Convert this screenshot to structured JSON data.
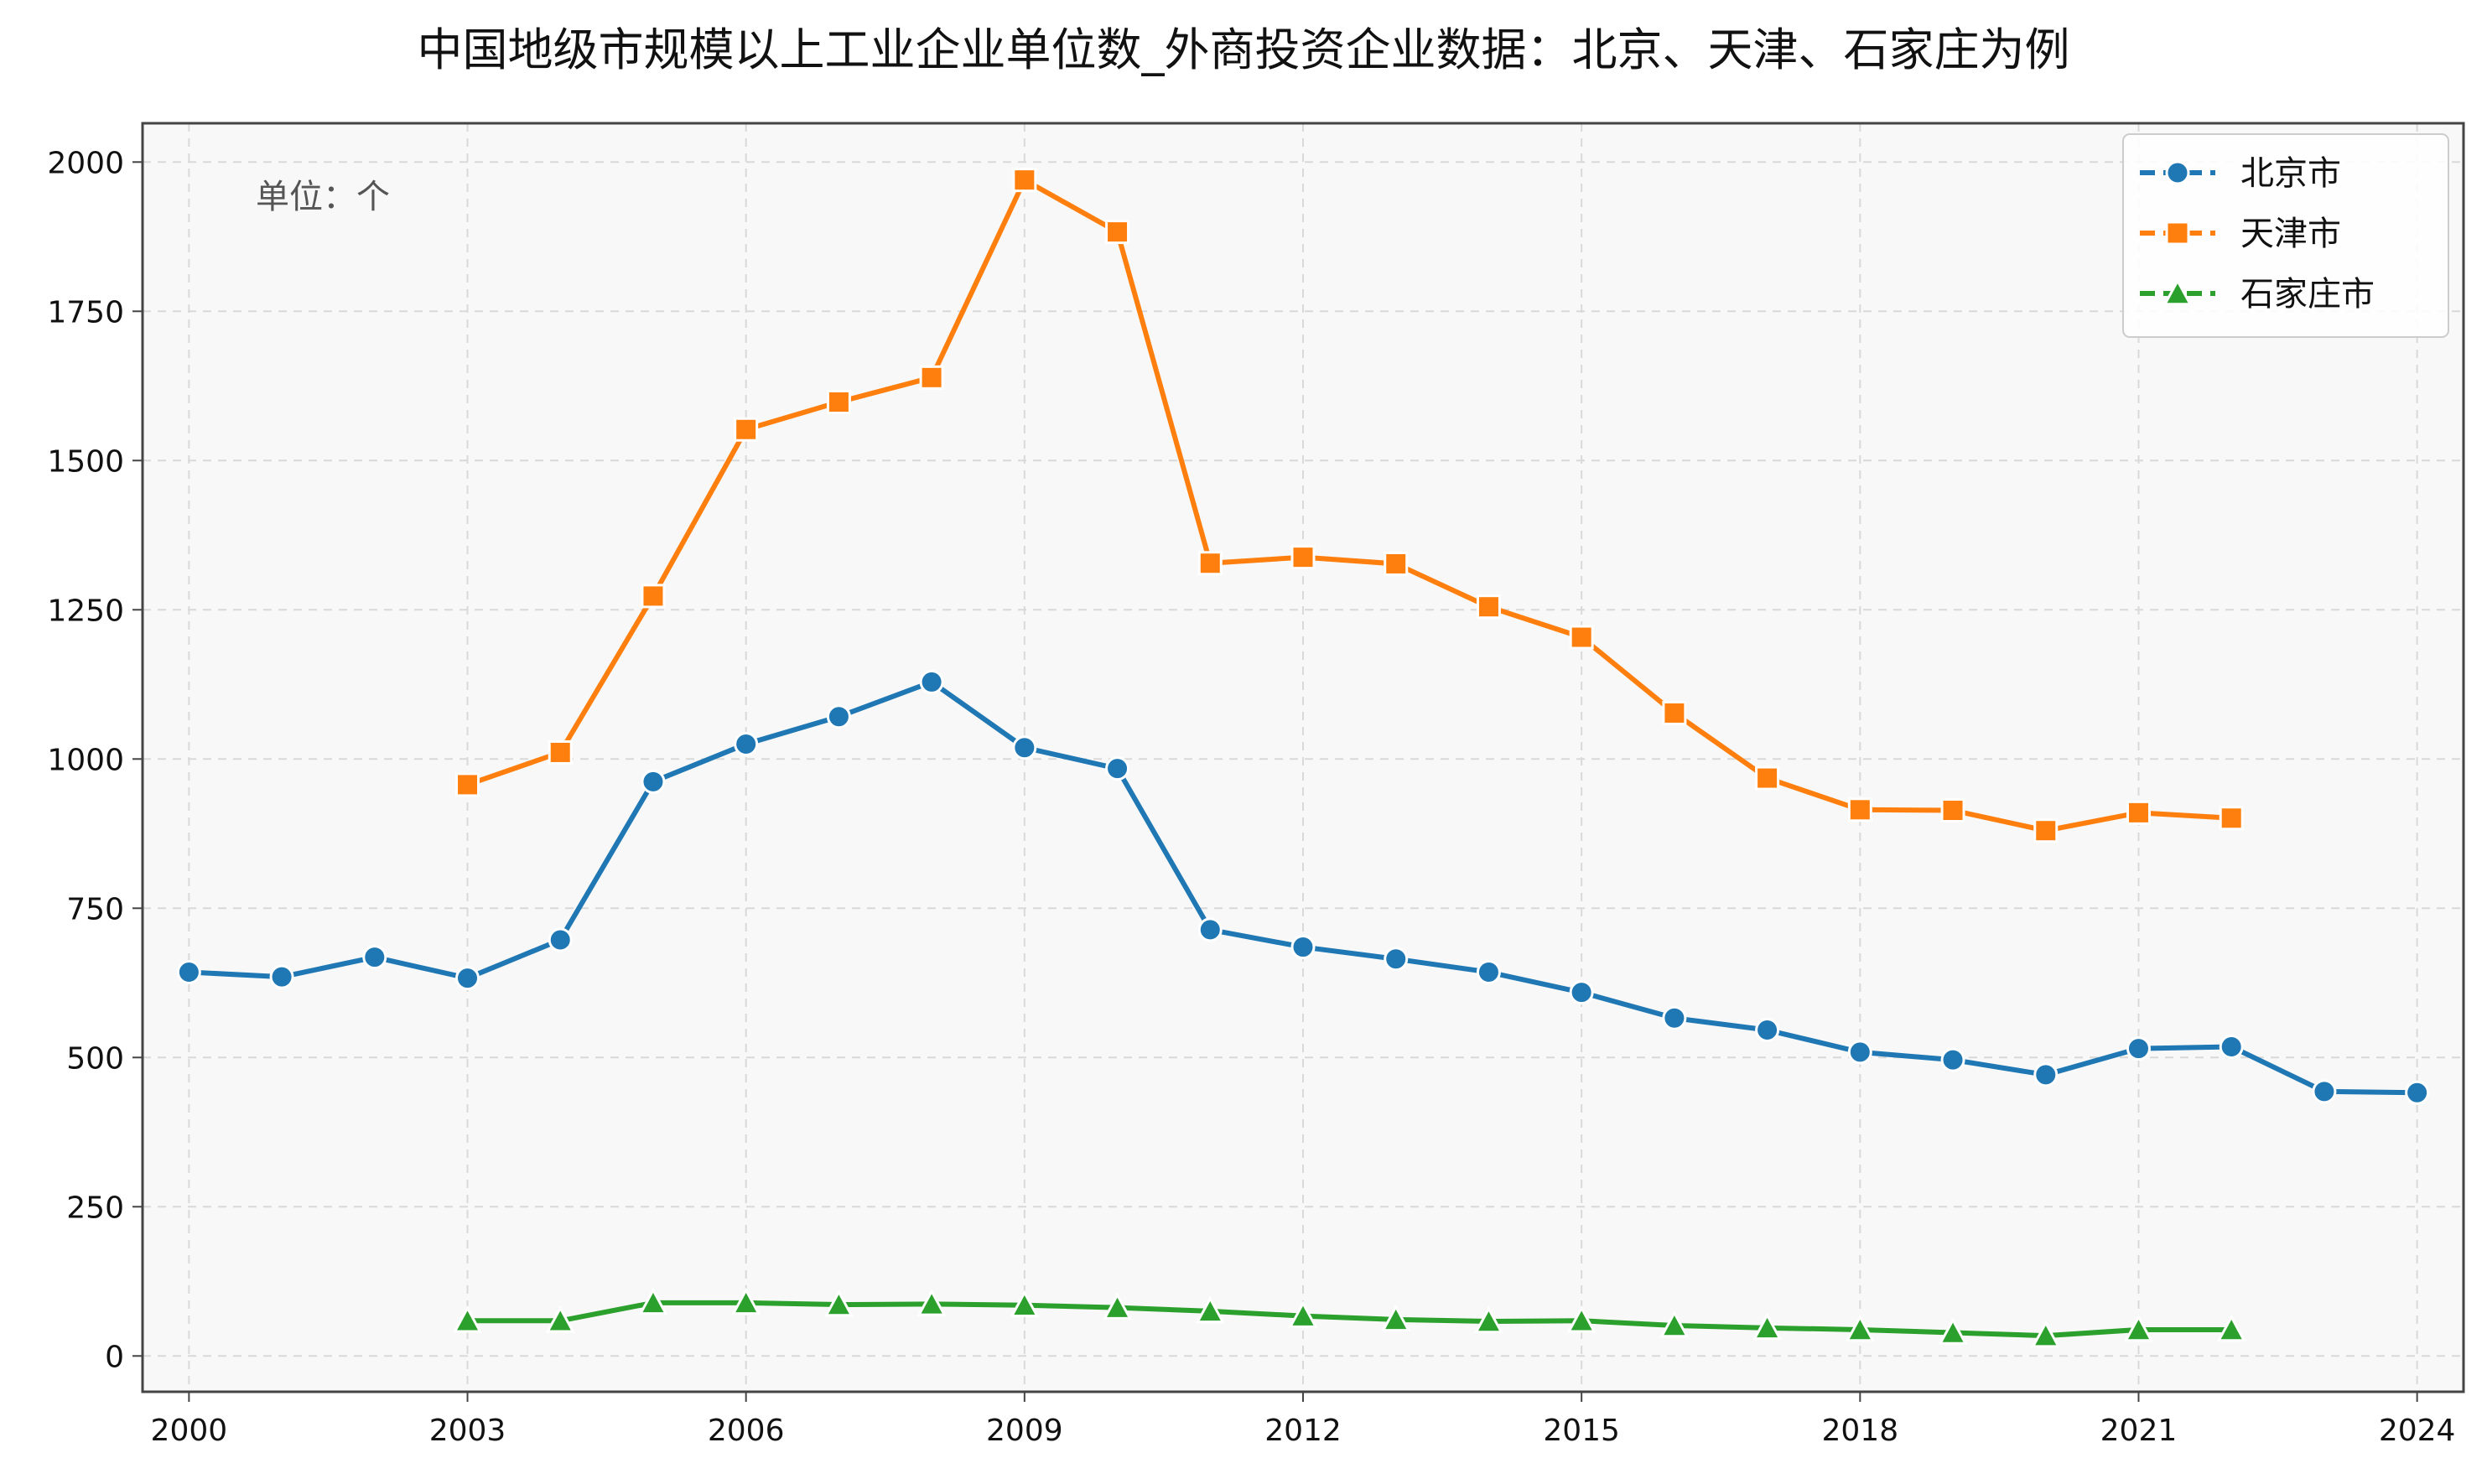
{
  "chart_data": {
    "type": "line",
    "title": "中国地级市规模以上工业企业单位数_外商投资企业数据：北京、天津、石家庄为例",
    "unit_note": "单位：个",
    "xlabel": "",
    "ylabel": "",
    "xlim": [
      1999.5,
      2024.5
    ],
    "ylim": [
      -60,
      2065
    ],
    "x_ticks": [
      2000,
      2003,
      2006,
      2009,
      2012,
      2015,
      2018,
      2021,
      2024
    ],
    "y_ticks": [
      0,
      250,
      500,
      750,
      1000,
      1250,
      1500,
      1750,
      2000
    ],
    "grid": true,
    "legend_position": "top-right",
    "series": [
      {
        "name": "北京市",
        "color": "#1f77b4",
        "marker": "circle",
        "points": [
          [
            2000,
            643
          ],
          [
            2001,
            635
          ],
          [
            2002,
            668
          ],
          [
            2003,
            633
          ],
          [
            2004,
            697
          ],
          [
            2005,
            962
          ],
          [
            2006,
            1025
          ],
          [
            2007,
            1071
          ],
          [
            2008,
            1129
          ],
          [
            2009,
            1019
          ],
          [
            2010,
            984
          ],
          [
            2011,
            714
          ],
          [
            2012,
            685
          ],
          [
            2013,
            665
          ],
          [
            2014,
            643
          ],
          [
            2015,
            609
          ],
          [
            2016,
            566
          ],
          [
            2017,
            546
          ],
          [
            2018,
            509
          ],
          [
            2019,
            496
          ],
          [
            2020,
            471
          ],
          [
            2021,
            515
          ],
          [
            2022,
            518
          ],
          [
            2023,
            443
          ],
          [
            2024,
            441
          ]
        ]
      },
      {
        "name": "天津市",
        "color": "#ff7f0e",
        "marker": "square",
        "points": [
          [
            2003,
            957
          ],
          [
            2004,
            1011
          ],
          [
            2005,
            1273
          ],
          [
            2006,
            1552
          ],
          [
            2007,
            1598
          ],
          [
            2008,
            1639
          ],
          [
            2009,
            1970
          ],
          [
            2010,
            1883
          ],
          [
            2011,
            1328
          ],
          [
            2012,
            1338
          ],
          [
            2013,
            1327
          ],
          [
            2014,
            1255
          ],
          [
            2015,
            1204
          ],
          [
            2016,
            1077
          ],
          [
            2017,
            968
          ],
          [
            2018,
            915
          ],
          [
            2019,
            914
          ],
          [
            2020,
            880
          ],
          [
            2021,
            910
          ],
          [
            2022,
            901
          ]
        ]
      },
      {
        "name": "石家庄市",
        "color": "#2ca02c",
        "marker": "triangle",
        "points": [
          [
            2003,
            59
          ],
          [
            2004,
            59
          ],
          [
            2005,
            89
          ],
          [
            2006,
            89
          ],
          [
            2007,
            86
          ],
          [
            2008,
            87
          ],
          [
            2009,
            85
          ],
          [
            2010,
            81
          ],
          [
            2011,
            75
          ],
          [
            2012,
            67
          ],
          [
            2013,
            61
          ],
          [
            2014,
            58
          ],
          [
            2015,
            59
          ],
          [
            2016,
            51
          ],
          [
            2017,
            47
          ],
          [
            2018,
            44
          ],
          [
            2019,
            39
          ],
          [
            2020,
            34
          ],
          [
            2021,
            44
          ],
          [
            2022,
            44
          ]
        ]
      }
    ]
  }
}
